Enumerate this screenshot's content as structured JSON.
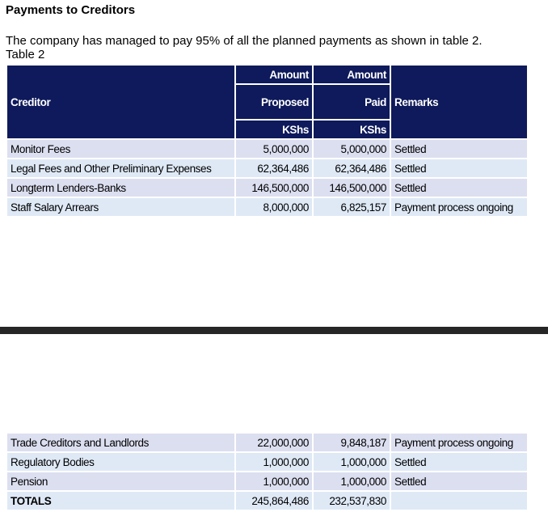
{
  "heading": "Payments to Creditors",
  "intro": "The company has managed to pay 95% of all the planned payments as shown in table 2.",
  "table_caption": "Table 2",
  "table": {
    "headers": {
      "creditor": "Creditor",
      "proposed_line1": "Amount",
      "proposed_line2": "Proposed",
      "proposed_line3": "KShs",
      "paid_line1": "Amount",
      "paid_line2": "Paid",
      "paid_line3": "KShs",
      "remarks": "Remarks"
    },
    "rows_top": [
      {
        "creditor": "Monitor Fees",
        "proposed": "5,000,000",
        "paid": "5,000,000",
        "remarks": "Settled"
      },
      {
        "creditor": "Legal Fees and Other Preliminary Expenses",
        "proposed": "62,364,486",
        "paid": "62,364,486",
        "remarks": "Settled"
      },
      {
        "creditor": "Longterm Lenders-Banks",
        "proposed": "146,500,000",
        "paid": "146,500,000",
        "remarks": "Settled"
      },
      {
        "creditor": "Staff Salary Arrears",
        "proposed": "8,000,000",
        "paid": "6,825,157",
        "remarks": "Payment process ongoing"
      }
    ],
    "rows_bottom": [
      {
        "creditor": "Trade Creditors and Landlords",
        "proposed": "22,000,000",
        "paid": "9,848,187",
        "remarks": "Payment process ongoing"
      },
      {
        "creditor": "Regulatory Bodies",
        "proposed": "1,000,000",
        "paid": "1,000,000",
        "remarks": "Settled"
      },
      {
        "creditor": "Pension",
        "proposed": "1,000,000",
        "paid": "1,000,000",
        "remarks": "Settled"
      }
    ],
    "totals": {
      "label": "TOTALS",
      "proposed": "245,864,486",
      "paid": "232,537,830",
      "remarks": ""
    }
  },
  "colors": {
    "header_bg": "#0e1a5b",
    "row_odd_bg": "#dcdff0",
    "row_even_bg": "#dfe9f6",
    "divider": "#262626"
  }
}
